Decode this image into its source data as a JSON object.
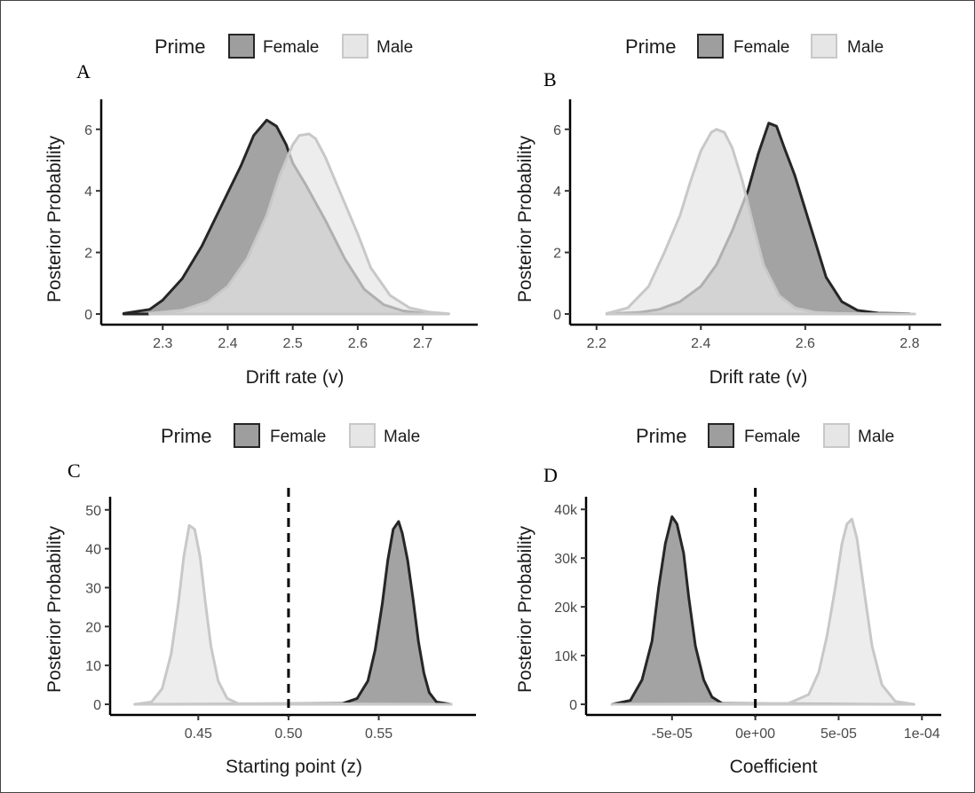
{
  "chart_data": [
    {
      "type": "area",
      "panel_label": "A",
      "xlabel": "Drift rate (v)",
      "ylabel": "Posterior Probability",
      "xlim": [
        2.23,
        2.76
      ],
      "ylim": [
        0,
        6.8
      ],
      "x_ticks": [
        2.3,
        2.4,
        2.5,
        2.6,
        2.7
      ],
      "x_tick_labels": [
        "2.3",
        "2.4",
        "2.5",
        "2.6",
        "2.7"
      ],
      "y_ticks": [
        0,
        2,
        4,
        6
      ],
      "y_tick_labels": [
        "0",
        "2",
        "4",
        "6"
      ],
      "vline": null,
      "legend": {
        "title": "Prime",
        "position": "top",
        "entries": [
          "Female",
          "Male"
        ]
      },
      "series": [
        {
          "name": "Female",
          "fill": "#9e9e9e",
          "stroke": "#262626",
          "lightness": "dark",
          "x": [
            2.24,
            2.28,
            2.3,
            2.33,
            2.36,
            2.39,
            2.42,
            2.44,
            2.46,
            2.475,
            2.49,
            2.5,
            2.52,
            2.55,
            2.58,
            2.61,
            2.64,
            2.67,
            2.7,
            2.72
          ],
          "y": [
            0.02,
            0.15,
            0.45,
            1.15,
            2.2,
            3.5,
            4.8,
            5.8,
            6.3,
            6.1,
            5.5,
            4.9,
            4.2,
            3.05,
            1.8,
            0.8,
            0.3,
            0.1,
            0.03,
            0.01
          ]
        },
        {
          "name": "Male",
          "fill": "#e6e6e6",
          "stroke": "#c8c8c8",
          "lightness": "light",
          "x": [
            2.28,
            2.33,
            2.37,
            2.4,
            2.43,
            2.46,
            2.48,
            2.5,
            2.51,
            2.525,
            2.535,
            2.55,
            2.56,
            2.58,
            2.6,
            2.62,
            2.65,
            2.68,
            2.71,
            2.74
          ],
          "y": [
            0.02,
            0.12,
            0.4,
            0.9,
            1.8,
            3.2,
            4.5,
            5.5,
            5.8,
            5.85,
            5.7,
            5.1,
            4.6,
            3.6,
            2.6,
            1.5,
            0.6,
            0.2,
            0.06,
            0.01
          ]
        }
      ]
    },
    {
      "type": "area",
      "panel_label": "B",
      "xlabel": "Drift rate (v)",
      "ylabel": "Posterior Probability",
      "xlim": [
        2.18,
        2.83
      ],
      "ylim": [
        0,
        6.8
      ],
      "x_ticks": [
        2.2,
        2.4,
        2.6,
        2.8
      ],
      "x_tick_labels": [
        "2.2",
        "2.4",
        "2.6",
        "2.8"
      ],
      "y_ticks": [
        0,
        2,
        4,
        6
      ],
      "y_tick_labels": [
        "0",
        "2",
        "4",
        "6"
      ],
      "vline": null,
      "legend": {
        "title": "Prime",
        "position": "top",
        "entries": [
          "Female",
          "Male"
        ]
      },
      "series": [
        {
          "name": "Female",
          "fill": "#9e9e9e",
          "stroke": "#262626",
          "lightness": "dark",
          "x": [
            2.22,
            2.28,
            2.32,
            2.36,
            2.4,
            2.43,
            2.46,
            2.49,
            2.51,
            2.53,
            2.545,
            2.56,
            2.58,
            2.6,
            2.62,
            2.64,
            2.67,
            2.7,
            2.74,
            2.8
          ],
          "y": [
            0.01,
            0.05,
            0.15,
            0.4,
            0.9,
            1.6,
            2.7,
            4.0,
            5.2,
            6.2,
            6.1,
            5.4,
            4.5,
            3.4,
            2.3,
            1.2,
            0.4,
            0.12,
            0.03,
            0.01
          ]
        },
        {
          "name": "Male",
          "fill": "#e6e6e6",
          "stroke": "#c8c8c8",
          "lightness": "light",
          "x": [
            2.22,
            2.26,
            2.3,
            2.33,
            2.36,
            2.38,
            2.4,
            2.42,
            2.43,
            2.445,
            2.46,
            2.48,
            2.5,
            2.52,
            2.55,
            2.58,
            2.62,
            2.66,
            2.72,
            2.81
          ],
          "y": [
            0.02,
            0.2,
            0.9,
            2.0,
            3.2,
            4.3,
            5.3,
            5.9,
            6.0,
            5.9,
            5.4,
            4.3,
            2.9,
            1.6,
            0.6,
            0.2,
            0.05,
            0.02,
            0.01,
            0.0
          ]
        }
      ]
    },
    {
      "type": "area",
      "panel_label": "C",
      "xlabel": "Starting point (z)",
      "ylabel": "Posterior Probability",
      "xlim": [
        0.41,
        0.595
      ],
      "ylim": [
        0,
        52
      ],
      "x_ticks": [
        0.45,
        0.5,
        0.55
      ],
      "x_tick_labels": [
        "0.45",
        "0.50",
        "0.55"
      ],
      "y_ticks": [
        0,
        10,
        20,
        30,
        40,
        50
      ],
      "y_tick_labels": [
        "0",
        "10",
        "20",
        "30",
        "40",
        "50"
      ],
      "vline": 0.5,
      "legend": {
        "title": "Prime",
        "position": "top",
        "entries": [
          "Female",
          "Male"
        ]
      },
      "series": [
        {
          "name": "Female",
          "fill": "#9e9e9e",
          "stroke": "#262626",
          "lightness": "dark",
          "x": [
            0.415,
            0.53,
            0.538,
            0.544,
            0.548,
            0.552,
            0.555,
            0.558,
            0.561,
            0.563,
            0.566,
            0.569,
            0.572,
            0.575,
            0.578,
            0.582,
            0.59
          ],
          "y": [
            0.0,
            0.2,
            1.5,
            6.0,
            14.0,
            26.0,
            37.0,
            45.0,
            47.0,
            44.0,
            37.0,
            27.0,
            16.0,
            8.0,
            3.0,
            0.6,
            0.0
          ]
        },
        {
          "name": "Male",
          "fill": "#e6e6e6",
          "stroke": "#c8c8c8",
          "lightness": "light",
          "x": [
            0.415,
            0.424,
            0.43,
            0.435,
            0.439,
            0.442,
            0.445,
            0.448,
            0.451,
            0.454,
            0.457,
            0.461,
            0.466,
            0.472,
            0.59
          ],
          "y": [
            0.0,
            0.6,
            4.0,
            13.0,
            26.0,
            38.0,
            46.0,
            45.0,
            38.0,
            26.0,
            15.0,
            6.0,
            1.5,
            0.2,
            0.0
          ]
        }
      ]
    },
    {
      "type": "area",
      "panel_label": "D",
      "xlabel": "Coefficient",
      "ylabel": "Posterior Probability",
      "xlim": [
        -9.2e-05,
        0.000102
      ],
      "ylim": [
        0,
        41500
      ],
      "x_ticks": [
        -5e-05,
        0.0,
        5e-05,
        0.0001
      ],
      "x_tick_labels": [
        "-5e-05",
        "0e+00",
        "5e-05",
        "1e-04"
      ],
      "y_ticks": [
        0,
        10000,
        20000,
        30000,
        40000
      ],
      "y_tick_labels": [
        "0",
        "10k",
        "20k",
        "30k",
        "40k"
      ],
      "vline": 0.0,
      "legend": {
        "title": "Prime",
        "position": "top",
        "entries": [
          "Female",
          "Male"
        ]
      },
      "series": [
        {
          "name": "Female",
          "fill": "#9e9e9e",
          "stroke": "#262626",
          "lightness": "dark",
          "x": [
            -8.6e-05,
            -7.5e-05,
            -6.8e-05,
            -6.2e-05,
            -5.8e-05,
            -5.4e-05,
            -5e-05,
            -4.7e-05,
            -4.3e-05,
            -4e-05,
            -3.6e-05,
            -3.1e-05,
            -2.6e-05,
            -2e-05,
            9.5e-05
          ],
          "y": [
            0,
            800,
            5000,
            13000,
            24000,
            33000,
            38500,
            37000,
            31000,
            22000,
            12000,
            5000,
            1500,
            200,
            0
          ]
        },
        {
          "name": "Male",
          "fill": "#e6e6e6",
          "stroke": "#c8c8c8",
          "lightness": "light",
          "x": [
            -8.6e-05,
            2e-05,
            3.2e-05,
            3.8e-05,
            4.3e-05,
            4.8e-05,
            5.2e-05,
            5.5e-05,
            5.8e-05,
            6.1e-05,
            6.5e-05,
            7e-05,
            7.6e-05,
            8.4e-05,
            9.5e-05
          ],
          "y": [
            0,
            200,
            2000,
            6500,
            14000,
            24000,
            33000,
            37000,
            38000,
            34000,
            24000,
            12000,
            4000,
            600,
            0
          ]
        }
      ]
    }
  ]
}
